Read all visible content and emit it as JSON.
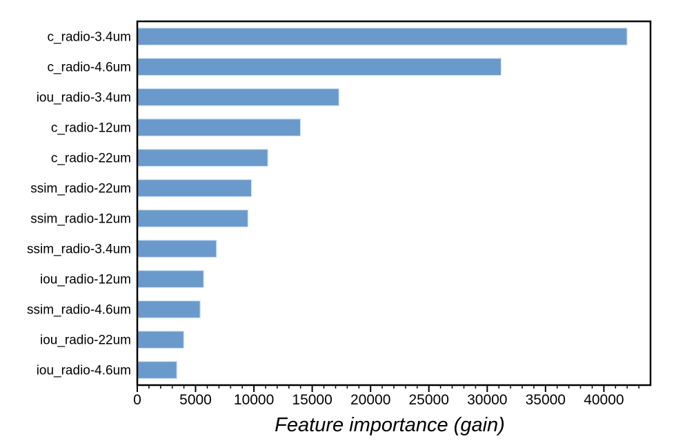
{
  "chart_data": {
    "type": "bar",
    "orientation": "horizontal",
    "title": "",
    "xlabel": "Feature importance (gain)",
    "ylabel": "",
    "categories": [
      "c_radio-3.4um",
      "c_radio-4.6um",
      "iou_radio-3.4um",
      "c_radio-12um",
      "c_radio-22um",
      "ssim_radio-22um",
      "ssim_radio-12um",
      "ssim_radio-3.4um",
      "iou_radio-12um",
      "ssim_radio-4.6um",
      "iou_radio-22um",
      "iou_radio-4.6um"
    ],
    "values": [
      42000,
      31200,
      17300,
      14000,
      11200,
      9800,
      9500,
      6800,
      5700,
      5400,
      4000,
      3400
    ],
    "xlim": [
      0,
      44000
    ],
    "x_major_ticks": [
      0,
      5000,
      10000,
      15000,
      20000,
      25000,
      30000,
      35000,
      40000
    ],
    "x_major_tick_labels": [
      "0",
      "5000",
      "10000",
      "15000",
      "20000",
      "25000",
      "30000",
      "35000",
      "40000"
    ],
    "x_minor_tick_step": 1000,
    "grid": false,
    "legend_position": "none",
    "bar_color": "#6a9acb",
    "bar_edge_color": "#dce8f4",
    "axis_color": "#000000",
    "background_color": "#ffffff"
  }
}
